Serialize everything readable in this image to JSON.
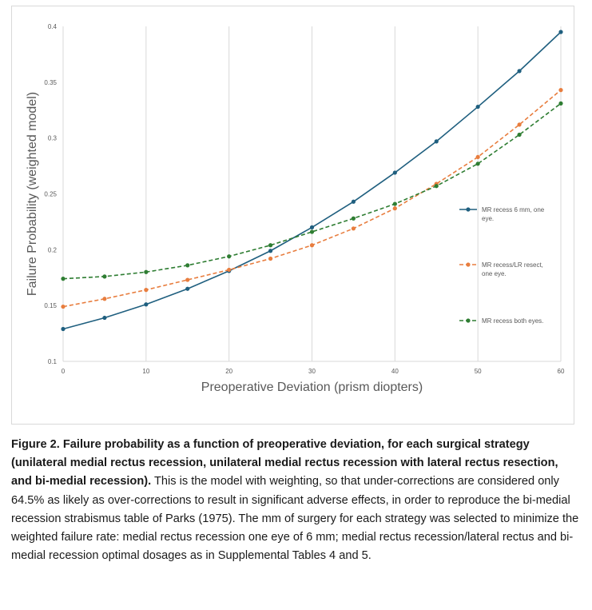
{
  "chart_data": {
    "type": "line",
    "xlabel": "Preoperative Deviation (prism diopters)",
    "ylabel": "Failure Probability (weighted model)",
    "xlim": [
      0,
      60
    ],
    "ylim": [
      0.1,
      0.4
    ],
    "x_ticks": [
      "0",
      "10",
      "20",
      "30",
      "40",
      "50",
      "60"
    ],
    "y_ticks": [
      "0.1",
      "0.15",
      "0.2",
      "0.25",
      "0.3",
      "0.35",
      "0.4"
    ],
    "x": [
      0,
      5,
      10,
      15,
      20,
      25,
      30,
      35,
      40,
      45,
      50,
      55,
      60
    ],
    "grid": "vertical",
    "legend_position": "right",
    "series": [
      {
        "name": "MR recess 6 mm, one eye.",
        "color": "#1f5f7f",
        "dash": "solid",
        "values": [
          0.129,
          0.139,
          0.151,
          0.165,
          0.181,
          0.199,
          0.22,
          0.243,
          0.269,
          0.297,
          0.328,
          0.36,
          0.395
        ]
      },
      {
        "name": "MR recess/LR resect, one eye.",
        "color": "#e87d3e",
        "dash": "dashed",
        "values": [
          0.149,
          0.156,
          0.164,
          0.173,
          0.182,
          0.192,
          0.204,
          0.219,
          0.237,
          0.259,
          0.283,
          0.312,
          0.343
        ]
      },
      {
        "name": "MR recess both eyes.",
        "color": "#2e7d32",
        "dash": "dashed",
        "values": [
          0.174,
          0.176,
          0.18,
          0.186,
          0.194,
          0.204,
          0.216,
          0.228,
          0.241,
          0.257,
          0.277,
          0.303,
          0.331
        ]
      }
    ]
  },
  "caption": {
    "bold": "Figure 2. Failure probability as a function of preoperative deviation, for each surgical strategy (unilateral medial rectus recession, unilateral medial rectus recession with lateral rectus resection, and bi-medial recession).",
    "body": "This is the model with weighting, so that under-corrections are considered only 64.5% as likely as over-corrections to result in significant adverse effects, in order to reproduce the bi-medial recession strabismus table of Parks (1975). The mm of surgery for each strategy was selected to minimize the weighted failure rate: medial rectus recession one eye of 6 mm; medial rectus recession/lateral rectus and bi-medial recession optimal dosages as in Supplemental Tables 4 and 5."
  }
}
